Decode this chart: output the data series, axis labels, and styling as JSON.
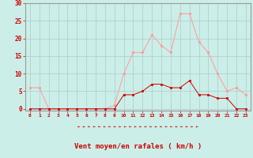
{
  "x": [
    0,
    1,
    2,
    3,
    4,
    5,
    6,
    7,
    8,
    9,
    10,
    11,
    12,
    13,
    14,
    15,
    16,
    17,
    18,
    19,
    20,
    21,
    22,
    23
  ],
  "y_moyen": [
    0,
    0,
    0,
    0,
    0,
    0,
    0,
    0,
    0,
    0,
    4,
    4,
    5,
    7,
    7,
    6,
    6,
    8,
    4,
    4,
    3,
    3,
    0,
    0
  ],
  "y_rafales": [
    6,
    6,
    0,
    0,
    0,
    0,
    0,
    0,
    0,
    1,
    10,
    16,
    16,
    21,
    18,
    16,
    27,
    27,
    19,
    16,
    10,
    5,
    6,
    4
  ],
  "line_color_moyen": "#cc0000",
  "line_color_rafales": "#ff9999",
  "bg_color": "#cceee8",
  "grid_color": "#aacccc",
  "xlabel": "Vent moyen/en rafales ( km/h )",
  "xlabel_color": "#cc0000",
  "ylabel_ticks": [
    0,
    5,
    10,
    15,
    20,
    25,
    30
  ],
  "xlim": [
    -0.5,
    23.5
  ],
  "ylim": [
    -0.5,
    30
  ],
  "tick_color": "#cc0000",
  "spine_color": "#999999",
  "arrow_color": "#cc0000"
}
